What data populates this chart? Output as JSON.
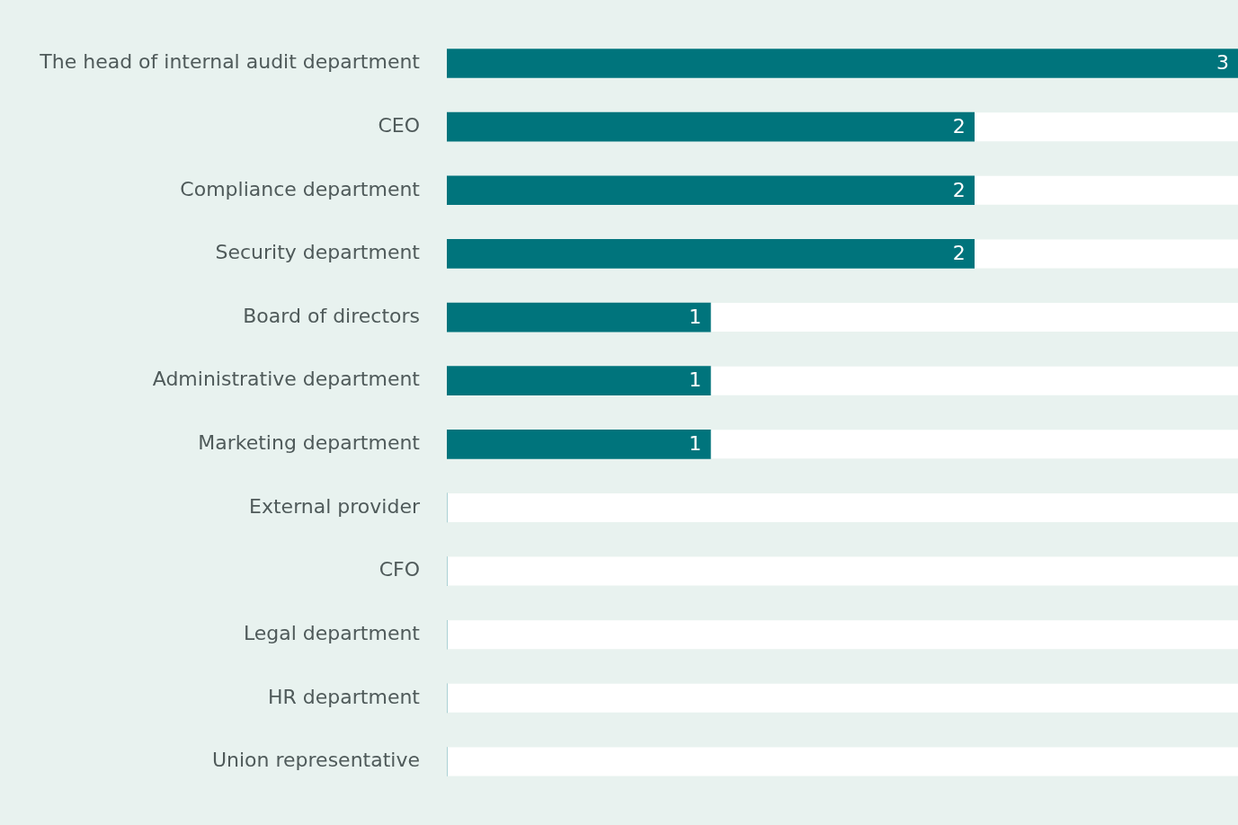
{
  "chart_data": {
    "type": "bar",
    "orientation": "horizontal",
    "categories": [
      "The head of internal audit department",
      "CEO",
      "Compliance department",
      "Security department",
      "Board of directors",
      "Administrative department",
      "Marketing department",
      "External provider",
      "CFO",
      "Legal department",
      "HR department",
      "Union representative"
    ],
    "values": [
      3,
      2,
      2,
      2,
      1,
      1,
      1,
      0,
      0,
      0,
      0,
      0
    ],
    "value_labels": [
      "3",
      "2",
      "2",
      "2",
      "1",
      "1",
      "1",
      null,
      null,
      null,
      null,
      null
    ],
    "color": "#00747c",
    "legend": false,
    "tick_labels": "y"
  }
}
